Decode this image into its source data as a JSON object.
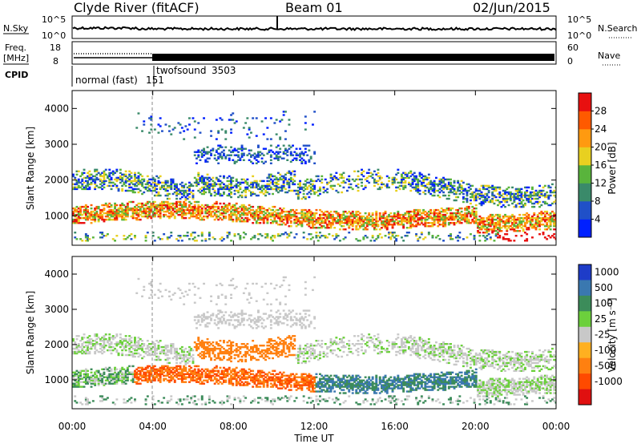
{
  "header": {
    "title": "Clyde River (fitACF)",
    "beam": "Beam 01",
    "date": "02/Jun/2015"
  },
  "panels": {
    "nsky_label": "N.Sky",
    "nsearch_label": "N.Search",
    "freq_label_line1": "Freq.",
    "freq_label_line2": "[MHz]",
    "nave_label": "Nave",
    "cpid_label": "CPID",
    "nsky_ticks": [
      "10^5",
      "10^0"
    ],
    "nsearch_ticks": [
      "10^5",
      "10^0"
    ],
    "freq_ticks": [
      "18",
      "8"
    ],
    "nave_ticks": [
      "60",
      "0"
    ],
    "cpid_modes": [
      {
        "name": "normal (fast)",
        "start_hour": 0
      },
      {
        "name": "151",
        "start_hour": 4
      },
      {
        "name": "twofsound",
        "start_hour": 4
      },
      {
        "name": "3503",
        "start_hour": 4
      }
    ]
  },
  "chart_data": [
    {
      "type": "heatmap",
      "quantity": "Power",
      "ylabel": "Slant Range [km]",
      "xlabel": "Time UT",
      "xlim": [
        0,
        24
      ],
      "ylim": [
        180,
        4500
      ],
      "x_ticks": [
        "00:00",
        "04:00",
        "08:00",
        "12:00",
        "16:00",
        "20:00",
        "00:00"
      ],
      "y_ticks": [
        1000,
        2000,
        3000,
        4000
      ],
      "colorbar": {
        "label": "Power [dB]",
        "range": [
          0,
          32
        ],
        "ticks": [
          "4",
          "8",
          "12",
          "16",
          "20",
          "24",
          "28"
        ],
        "colors": [
          "#0020ff",
          "#2050c8",
          "#3a8a6a",
          "#59b43c",
          "#e8d020",
          "#ff9a10",
          "#ff5a00",
          "#e81010"
        ]
      }
    },
    {
      "type": "heatmap",
      "quantity": "Velocity",
      "ylabel": "Slant Range [km]",
      "xlabel": "Time UT",
      "xlim": [
        0,
        24
      ],
      "ylim": [
        180,
        4500
      ],
      "x_ticks": [
        "00:00",
        "04:00",
        "08:00",
        "12:00",
        "16:00",
        "20:00",
        "00:00"
      ],
      "y_ticks": [
        1000,
        2000,
        3000,
        4000
      ],
      "colorbar": {
        "label": "Velocity [m s⁻¹]",
        "ticks": [
          "1000",
          "500",
          "100",
          "25",
          "-25",
          "-100",
          "-500",
          "-1000"
        ],
        "colors": [
          "#1e3cc8",
          "#3a78b0",
          "#3c8c5a",
          "#6cd03c",
          "#c8c8c8",
          "#ffb020",
          "#ff8010",
          "#ff4a00",
          "#e01010"
        ]
      }
    }
  ]
}
